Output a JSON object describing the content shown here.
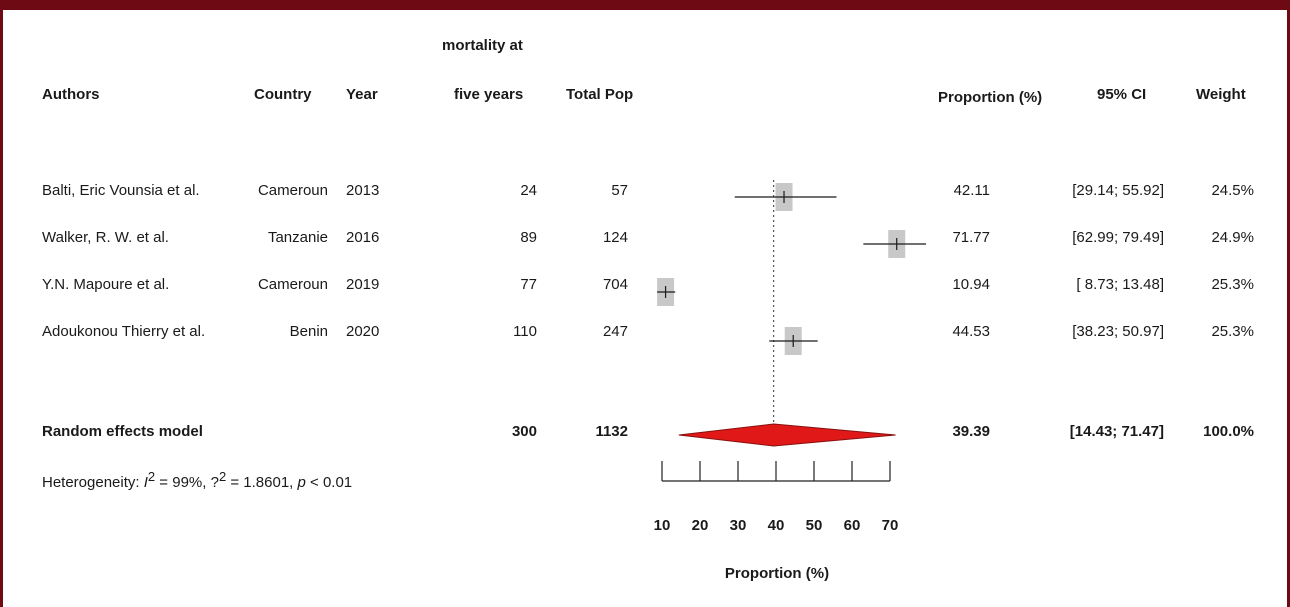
{
  "header": {
    "authors": "Authors",
    "country": "Country",
    "year": "Year",
    "events_line1": "mortality at",
    "events_line2": "five years",
    "total": "Total Pop",
    "proportion": "Proportion (%)",
    "ci": "95% CI",
    "weight": "Weight"
  },
  "studies": [
    {
      "author": "Balti, Eric Vounsia et al.",
      "country": "Cameroun",
      "year": "2013",
      "events": "24",
      "total": "57",
      "prop": "42.11",
      "ci": "[29.14; 55.92]",
      "weight": "24.5%"
    },
    {
      "author": "Walker, R. W. et al.",
      "country": "Tanzanie",
      "year": "2016",
      "events": "89",
      "total": "124",
      "prop": "71.77",
      "ci": "[62.99; 79.49]",
      "weight": "24.9%"
    },
    {
      "author": "Y.N. Mapoure et al.",
      "country": "Cameroun",
      "year": "2019",
      "events": "77",
      "total": "704",
      "prop": "10.94",
      "ci": "[ 8.73; 13.48]",
      "weight": "25.3%"
    },
    {
      "author": "Adoukonou Thierry et al.",
      "country": "Benin",
      "year": "2020",
      "events": "110",
      "total": "247",
      "prop": "44.53",
      "ci": "[38.23; 50.97]",
      "weight": "25.3%"
    }
  ],
  "random": {
    "label": "Random effects model",
    "events": "300",
    "total": "1132",
    "prop": "39.39",
    "ci": "[14.43; 71.47]",
    "weight": "100.0%"
  },
  "heterogeneity": {
    "prefix": "Heterogeneity: ",
    "i_sym": "I",
    "i_val": " = 99%",
    "tau_sym": "?",
    "tau_val": " = 1.8601",
    "p_sym": "p",
    "p_val": " < 0.01",
    "exp": "2",
    "sep": ", "
  },
  "chart_data": {
    "type": "forest",
    "xlabel": "Proportion (%)",
    "ticks": [
      10,
      20,
      30,
      40,
      50,
      60,
      70
    ],
    "xlim": [
      10,
      70
    ],
    "studies": [
      {
        "est": 42.11,
        "lo": 29.14,
        "hi": 55.92,
        "weight": 24.5
      },
      {
        "est": 71.77,
        "lo": 62.99,
        "hi": 79.49,
        "weight": 24.9
      },
      {
        "est": 10.94,
        "lo": 8.73,
        "hi": 13.48,
        "weight": 25.3
      },
      {
        "est": 44.53,
        "lo": 38.23,
        "hi": 50.97,
        "weight": 25.3
      }
    ],
    "pooled": {
      "est": 39.39,
      "lo": 14.43,
      "hi": 71.47
    },
    "colors": {
      "box": "#c8c8c8",
      "diamond": "#e01818",
      "line": "#1a1a1a"
    }
  }
}
